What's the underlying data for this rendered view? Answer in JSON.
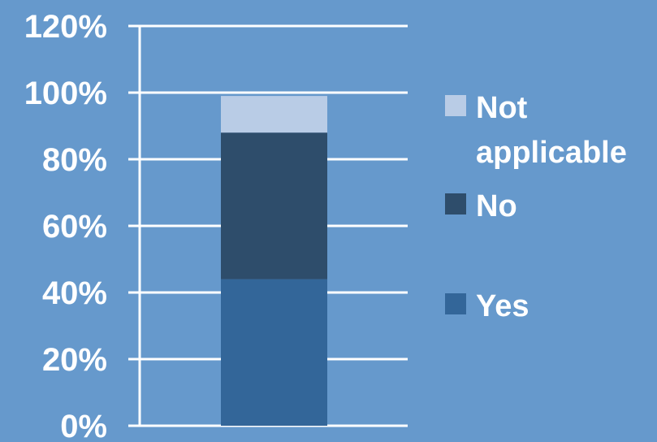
{
  "chart_data": {
    "type": "bar",
    "stacked": true,
    "categories": [
      ""
    ],
    "series": [
      {
        "name": "Yes",
        "values": [
          44
        ],
        "color": "#336699"
      },
      {
        "name": "No",
        "values": [
          44
        ],
        "color": "#2e4d6b"
      },
      {
        "name": "Not applicable",
        "values": [
          11
        ],
        "color": "#b9cce6"
      }
    ],
    "ylim": [
      0,
      120
    ],
    "yticks": [
      0,
      20,
      40,
      60,
      80,
      100,
      120
    ],
    "ytick_labels": [
      "0%",
      "20%",
      "40%",
      "60%",
      "80%",
      "100%",
      "120%"
    ],
    "grid": true,
    "legend_position": "right",
    "legend_order": [
      "Not applicable",
      "No",
      "Yes"
    ],
    "colors": {
      "background": "#6699cc",
      "grid": "#ffffff",
      "text": "#ffffff"
    }
  }
}
